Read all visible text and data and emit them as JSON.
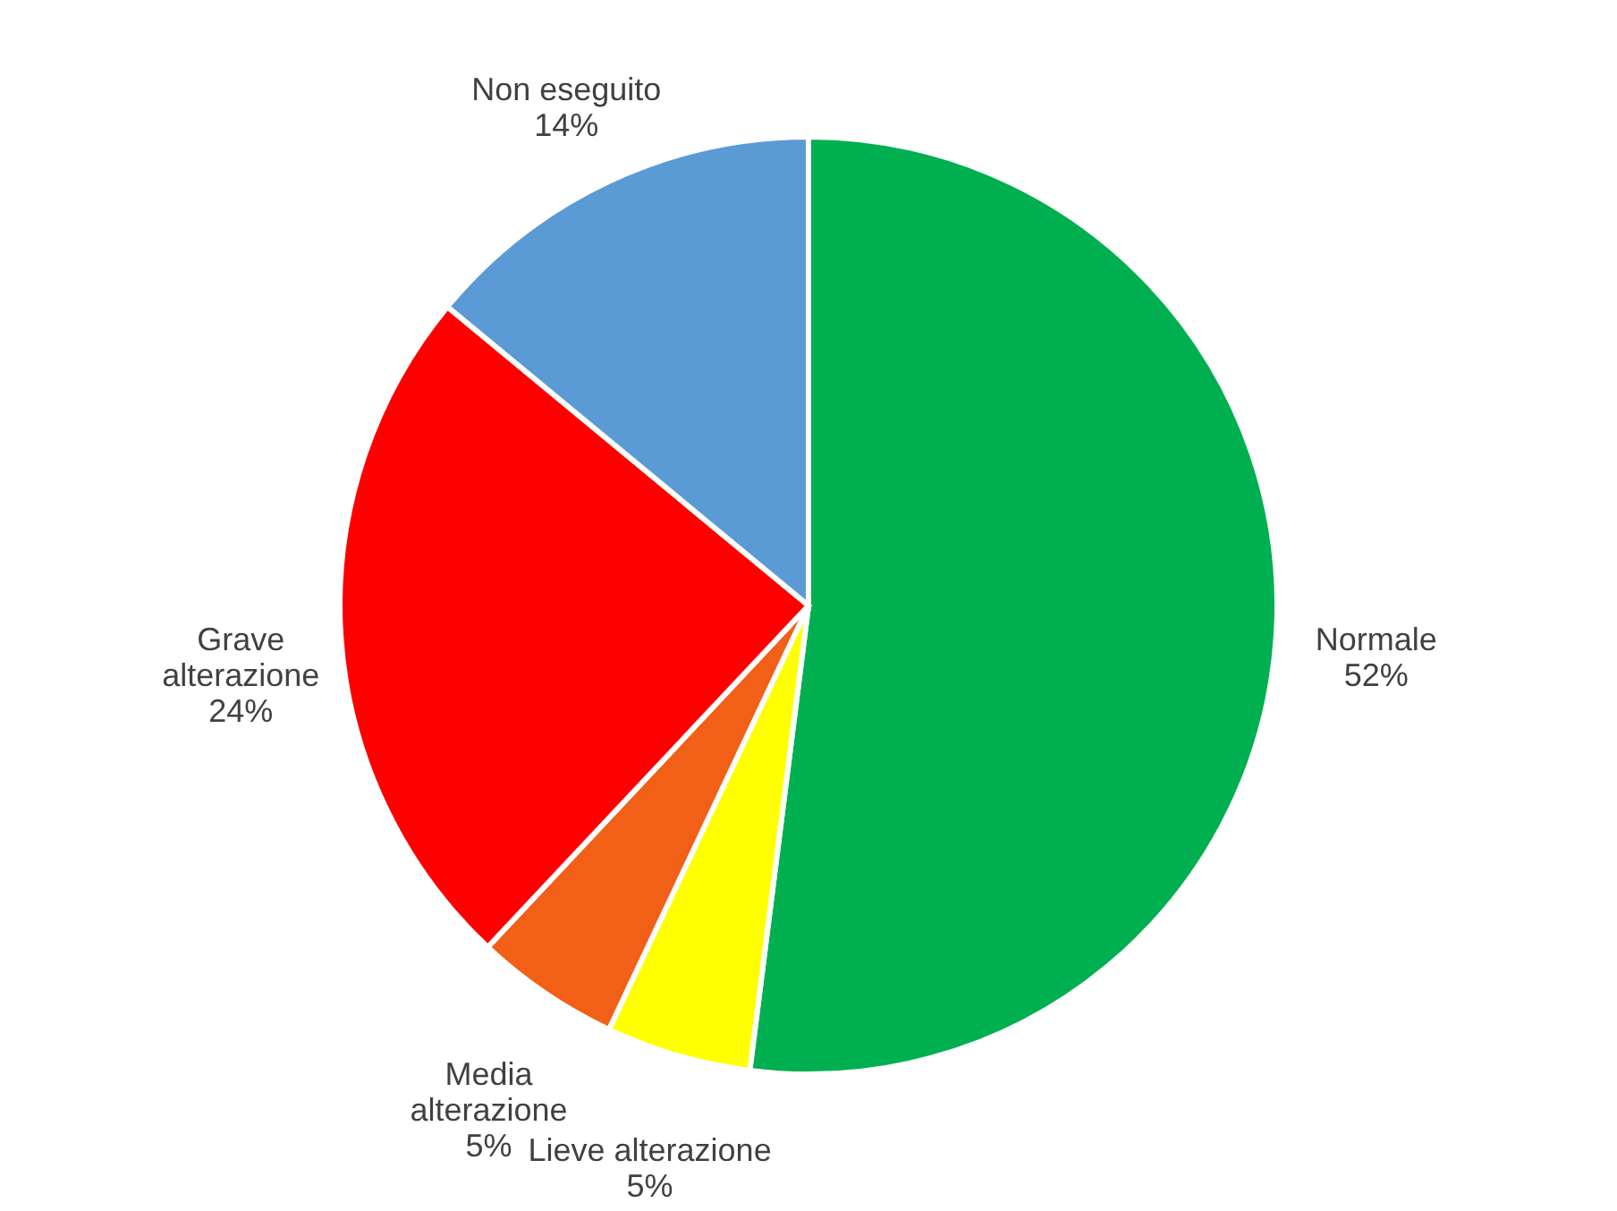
{
  "chart_data": {
    "type": "pie",
    "categories": [
      "Normale",
      "Lieve alterazione",
      "Media alterazione",
      "Grave alterazione",
      "Non eseguito"
    ],
    "values": [
      52,
      5,
      5,
      24,
      14
    ],
    "colors": [
      "#00b050",
      "#ffff00",
      "#f26018",
      "#ff0000",
      "#5b9bd5"
    ],
    "value_labels": [
      "52%",
      "5%",
      "5%",
      "24%",
      "14%"
    ]
  }
}
